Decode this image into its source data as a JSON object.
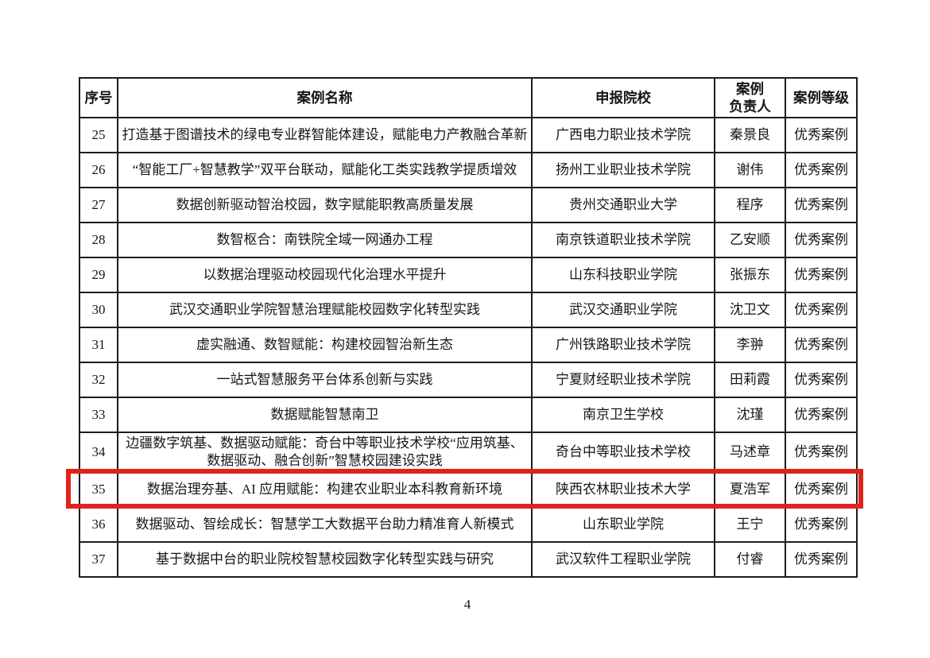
{
  "page_number": "4",
  "highlight": {
    "row_no": "35",
    "color": "#e0231a"
  },
  "table": {
    "headers": {
      "no": "序号",
      "name": "案例名称",
      "school": "申报院校",
      "leader": "案例\n负责人",
      "grade": "案例等级"
    },
    "rows": [
      {
        "no": "25",
        "name": "打造基于图谱技术的绿电专业群智能体建设，赋能电力产教融合革新",
        "school": "广西电力职业技术学院",
        "leader": "秦景良",
        "grade": "优秀案例"
      },
      {
        "no": "26",
        "name": "“智能工厂+智慧教学”双平台联动，赋能化工类实践教学提质增效",
        "school": "扬州工业职业技术学院",
        "leader": "谢伟",
        "grade": "优秀案例"
      },
      {
        "no": "27",
        "name": "数据创新驱动智治校园，数字赋能职教高质量发展",
        "school": "贵州交通职业大学",
        "leader": "程序",
        "grade": "优秀案例"
      },
      {
        "no": "28",
        "name": "数智枢合：南铁院全域一网通办工程",
        "school": "南京铁道职业技术学院",
        "leader": "乙安顺",
        "grade": "优秀案例"
      },
      {
        "no": "29",
        "name": "以数据治理驱动校园现代化治理水平提升",
        "school": "山东科技职业学院",
        "leader": "张振东",
        "grade": "优秀案例"
      },
      {
        "no": "30",
        "name": "武汉交通职业学院智慧治理赋能校园数字化转型实践",
        "school": "武汉交通职业学院",
        "leader": "沈卫文",
        "grade": "优秀案例"
      },
      {
        "no": "31",
        "name": "虚实融通、数智赋能：构建校园智治新生态",
        "school": "广州铁路职业技术学院",
        "leader": "李翀",
        "grade": "优秀案例"
      },
      {
        "no": "32",
        "name": "一站式智慧服务平台体系创新与实践",
        "school": "宁夏财经职业技术学院",
        "leader": "田莉霞",
        "grade": "优秀案例"
      },
      {
        "no": "33",
        "name": "数据赋能智慧南卫",
        "school": "南京卫生学校",
        "leader": "沈瑾",
        "grade": "优秀案例"
      },
      {
        "no": "34",
        "name": "边疆数字筑基、数据驱动赋能：奇台中等职业技术学校“应用筑基、数据驱动、融合创新”智慧校园建设实践",
        "school": "奇台中等职业技术学校",
        "leader": "马述章",
        "grade": "优秀案例"
      },
      {
        "no": "35",
        "name": "数据治理夯基、AI 应用赋能：构建农业职业本科教育新环境",
        "school": "陕西农林职业技术大学",
        "leader": "夏浩军",
        "grade": "优秀案例"
      },
      {
        "no": "36",
        "name": "数据驱动、智绘成长：智慧学工大数据平台助力精准育人新模式",
        "school": "山东职业学院",
        "leader": "王宁",
        "grade": "优秀案例"
      },
      {
        "no": "37",
        "name": "基于数据中台的职业院校智慧校园数字化转型实践与研究",
        "school": "武汉软件工程职业学院",
        "leader": "付睿",
        "grade": "优秀案例"
      }
    ]
  }
}
